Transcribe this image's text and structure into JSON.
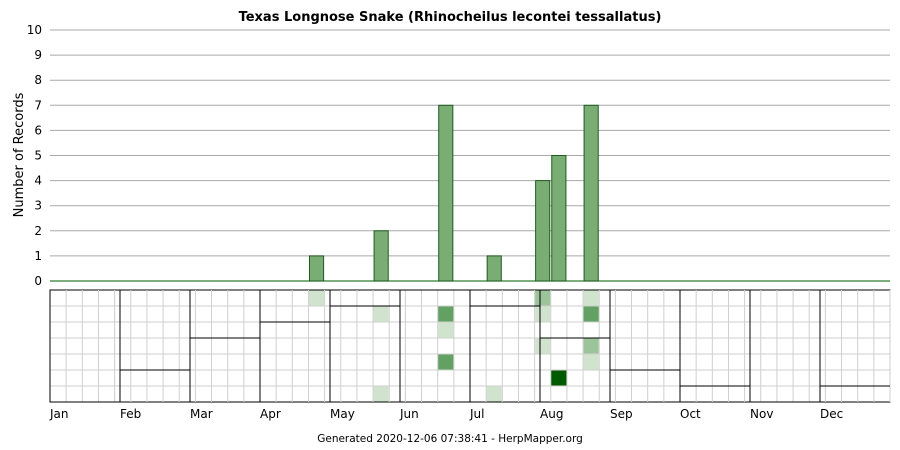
{
  "chart_data": {
    "type": "bar",
    "title": "Texas Longnose Snake (Rhinocheilus lecontei tessallatus)",
    "ylabel": "Number of Records",
    "xlabel": "",
    "ylim": [
      0,
      10
    ],
    "yticks": [
      "0",
      "1",
      "2",
      "3",
      "4",
      "5",
      "6",
      "7",
      "8",
      "9",
      "10"
    ],
    "grid": true,
    "unit_description": "weekly bins (48 per year, 4 per month)",
    "months": [
      "Jan",
      "Feb",
      "Mar",
      "Apr",
      "May",
      "Jun",
      "Jul",
      "Aug",
      "Sep",
      "Oct",
      "Nov",
      "Dec"
    ],
    "bars": [
      {
        "week": 15,
        "value": 1
      },
      {
        "week": 18,
        "value": 2
      },
      {
        "week": 22,
        "value": 7
      },
      {
        "week": 25,
        "value": 1
      },
      {
        "week": 28,
        "value": 4
      },
      {
        "week": 29,
        "value": 5
      },
      {
        "week": 30,
        "value": 7
      }
    ],
    "heatmap": {
      "rows": 7,
      "cells": [
        {
          "week": 15,
          "row": 0,
          "level": 1
        },
        {
          "week": 18,
          "row": 1,
          "level": 1
        },
        {
          "week": 18,
          "row": 6,
          "level": 1
        },
        {
          "week": 22,
          "row": 1,
          "level": 3
        },
        {
          "week": 22,
          "row": 2,
          "level": 1
        },
        {
          "week": 22,
          "row": 4,
          "level": 3
        },
        {
          "week": 25,
          "row": 6,
          "level": 1
        },
        {
          "week": 28,
          "row": 0,
          "level": 2
        },
        {
          "week": 28,
          "row": 1,
          "level": 1
        },
        {
          "week": 28,
          "row": 3,
          "level": 1
        },
        {
          "week": 30,
          "row": 0,
          "level": 1
        },
        {
          "week": 30,
          "row": 1,
          "level": 3
        },
        {
          "week": 30,
          "row": 3,
          "level": 2
        },
        {
          "week": 30,
          "row": 4,
          "level": 1
        },
        {
          "week": 29,
          "row": 5,
          "level": 4
        }
      ],
      "level_colors": [
        "#ffffff",
        "#cfe3cd",
        "#9cc49a",
        "#63a063",
        "#005a00"
      ],
      "daylight_steps": [
        7,
        5,
        3,
        2,
        1,
        0,
        1,
        3,
        5,
        6,
        7,
        6
      ]
    },
    "bar_color": "#7aad74",
    "bar_edge_color": "#1f5a1f",
    "zero_line_color": "#2e7d32"
  },
  "footer": "Generated 2020-12-06 07:38:41 - HerpMapper.org"
}
